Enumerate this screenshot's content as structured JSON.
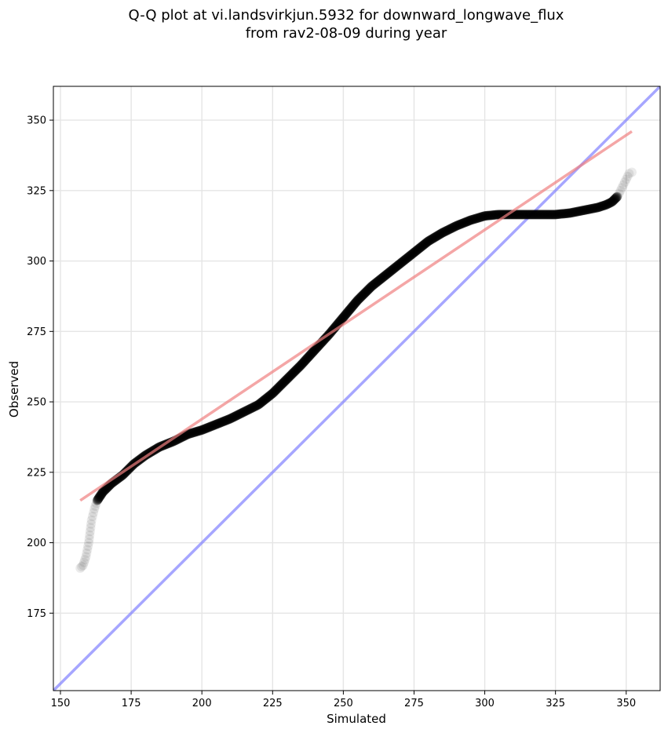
{
  "chart_data": {
    "type": "scatter",
    "title_lines": [
      "Q-Q plot at vi.landsvirkjun.5932 for downward_longwave_flux",
      "from rav2-08-09 during year"
    ],
    "xlabel": "Simulated",
    "ylabel": "Observed",
    "xlim": [
      147.5,
      362
    ],
    "ylim": [
      147.5,
      362
    ],
    "xticks": [
      150,
      175,
      200,
      225,
      250,
      275,
      300,
      325,
      350
    ],
    "yticks": [
      175,
      200,
      225,
      250,
      275,
      300,
      325,
      350
    ],
    "ytick_labels": [
      "175",
      "200",
      "225",
      "250",
      "275",
      "300",
      "325",
      "350"
    ],
    "xtick_labels": [
      "150",
      "175",
      "200",
      "225",
      "250",
      "275",
      "300",
      "325",
      "350"
    ],
    "grid": true,
    "colors": {
      "points": "#000000",
      "fit_line": "#f08080",
      "identity_line": "#8080ff",
      "grid": "#e5e5e5"
    },
    "quantile_curve": [
      [
        157,
        191
      ],
      [
        158,
        192
      ],
      [
        159,
        195
      ],
      [
        160,
        200
      ],
      [
        160.5,
        204
      ],
      [
        161,
        208
      ],
      [
        162,
        212
      ],
      [
        163,
        215
      ],
      [
        165,
        218
      ],
      [
        168,
        221
      ],
      [
        172,
        224
      ],
      [
        176,
        228
      ],
      [
        180,
        231
      ],
      [
        185,
        234
      ],
      [
        190,
        236
      ],
      [
        195,
        238.5
      ],
      [
        200,
        240
      ],
      [
        205,
        242
      ],
      [
        210,
        244
      ],
      [
        215,
        246.5
      ],
      [
        220,
        249
      ],
      [
        225,
        253
      ],
      [
        230,
        258
      ],
      [
        235,
        263
      ],
      [
        240,
        268.5
      ],
      [
        245,
        274
      ],
      [
        250,
        280
      ],
      [
        255,
        286
      ],
      [
        260,
        291
      ],
      [
        265,
        295
      ],
      [
        270,
        299
      ],
      [
        275,
        303
      ],
      [
        280,
        307
      ],
      [
        285,
        310
      ],
      [
        290,
        312.5
      ],
      [
        295,
        314.5
      ],
      [
        300,
        316
      ],
      [
        305,
        316.5
      ],
      [
        310,
        316.5
      ],
      [
        315,
        316.5
      ],
      [
        320,
        316.5
      ],
      [
        325,
        316.5
      ],
      [
        330,
        317
      ],
      [
        335,
        318
      ],
      [
        340,
        319
      ],
      [
        343,
        320
      ],
      [
        345,
        321
      ],
      [
        347,
        323
      ],
      [
        348,
        325
      ],
      [
        349,
        327
      ],
      [
        350,
        329
      ],
      [
        351,
        331
      ],
      [
        352,
        331.5
      ]
    ],
    "fit_line": {
      "x": [
        157,
        352
      ],
      "y": [
        215,
        346
      ]
    },
    "identity_line": {
      "x": [
        147.5,
        362
      ],
      "y": [
        147.5,
        362
      ]
    }
  }
}
